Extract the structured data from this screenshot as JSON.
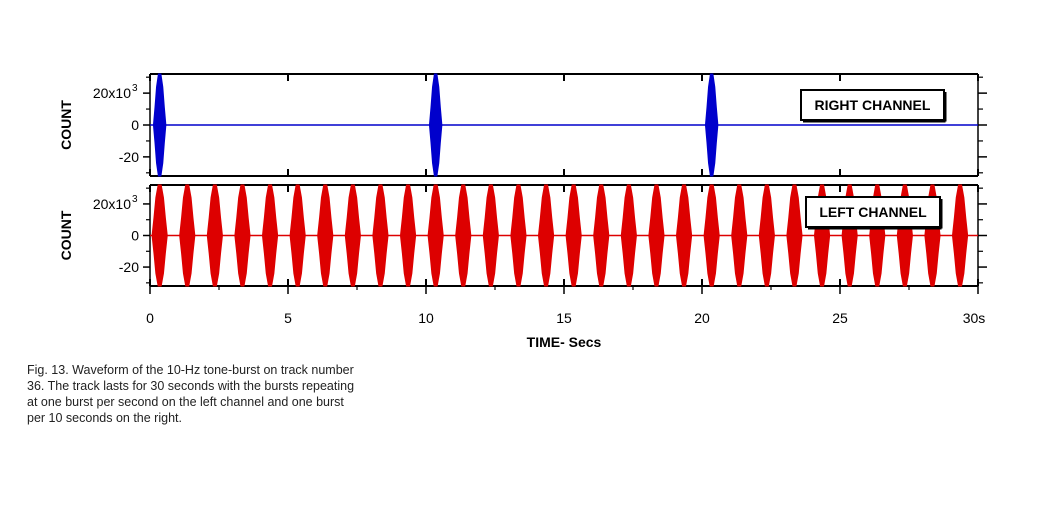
{
  "chart_data": [
    {
      "type": "line",
      "ylabel": "COUNT",
      "ylim": [
        -32,
        32
      ],
      "xlim": [
        0,
        30
      ],
      "yticks": [
        {
          "value": 20,
          "label": "20x10",
          "exp": "3"
        },
        {
          "value": 0,
          "label": "0",
          "exp": ""
        },
        {
          "value": -20,
          "label": "-20",
          "exp": ""
        }
      ],
      "legend": "RIGHT CHANNEL",
      "legend_position": "top-right",
      "color": "#0000cc",
      "burst_times": [
        0.35,
        10.35,
        20.35
      ],
      "burst_duration": 0.45,
      "burst_amplitude": 32
    },
    {
      "type": "line",
      "ylabel": "COUNT",
      "ylim": [
        -32,
        32
      ],
      "xlim": [
        0,
        30
      ],
      "yticks": [
        {
          "value": 20,
          "label": "20x10",
          "exp": "3"
        },
        {
          "value": 0,
          "label": "0",
          "exp": ""
        },
        {
          "value": -20,
          "label": "-20",
          "exp": ""
        }
      ],
      "legend": "LEFT CHANNEL",
      "legend_position": "top-right",
      "color": "#dd0000",
      "burst_times": [
        0.35,
        1.35,
        2.35,
        3.35,
        4.35,
        5.35,
        6.35,
        7.35,
        8.35,
        9.35,
        10.35,
        11.35,
        12.35,
        13.35,
        14.35,
        15.35,
        16.35,
        17.35,
        18.35,
        19.35,
        20.35,
        21.35,
        22.35,
        23.35,
        24.35,
        25.35,
        26.35,
        27.35,
        28.35,
        29.35
      ],
      "burst_duration": 0.55,
      "burst_amplitude": 32
    }
  ],
  "xaxis": {
    "label": "TIME- Secs",
    "ticks": [
      {
        "value": 0,
        "label": "0"
      },
      {
        "value": 5,
        "label": "5"
      },
      {
        "value": 10,
        "label": "10"
      },
      {
        "value": 15,
        "label": "15"
      },
      {
        "value": 20,
        "label": "20"
      },
      {
        "value": 25,
        "label": "25"
      },
      {
        "value": 30,
        "label": "30s"
      }
    ]
  },
  "caption": [
    "Fig. 13. Waveform of the 10-Hz tone-burst on track number",
    "36. The track lasts for 30 seconds with the bursts repeating",
    "at one burst per second on the left channel and one burst",
    "per 10 seconds on the right."
  ]
}
